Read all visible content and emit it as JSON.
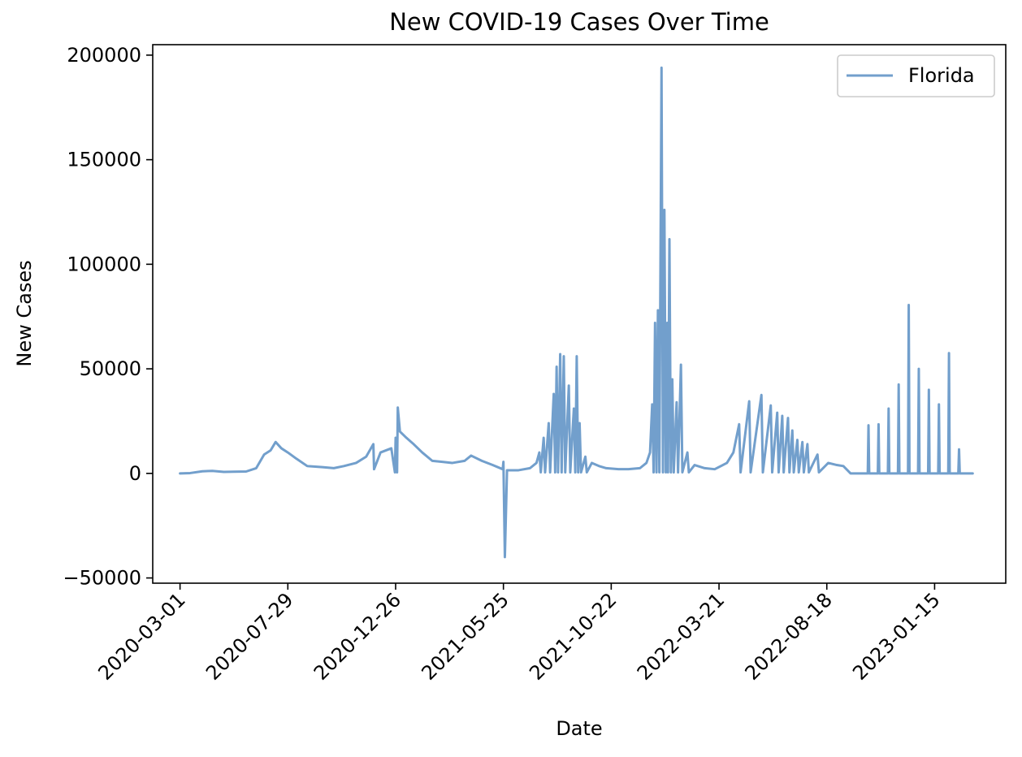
{
  "chart_data": {
    "type": "line",
    "title": "New COVID-19 Cases Over Time",
    "xlabel": "Date",
    "ylabel": "New Cases",
    "xlim": [
      "2020-01-23",
      "2023-04-24"
    ],
    "ylim": [
      -52500,
      205000
    ],
    "x_ticks": [
      "2020-03-01",
      "2020-07-29",
      "2020-12-26",
      "2021-05-25",
      "2021-10-22",
      "2022-03-21",
      "2022-08-18",
      "2023-01-15"
    ],
    "y_ticks": [
      -50000,
      0,
      50000,
      100000,
      150000,
      200000
    ],
    "y_tick_labels": [
      "−50000",
      "0",
      "50000",
      "100000",
      "150000",
      "200000"
    ],
    "grid": false,
    "legend_position": "top-right",
    "colors": {
      "series": "#729fcc"
    },
    "series": [
      {
        "name": "Florida",
        "color": "#729fcc",
        "points": [
          [
            "2020-03-01",
            0
          ],
          [
            "2020-03-15",
            150
          ],
          [
            "2020-04-01",
            1000
          ],
          [
            "2020-04-15",
            1200
          ],
          [
            "2020-05-01",
            700
          ],
          [
            "2020-05-15",
            800
          ],
          [
            "2020-06-01",
            900
          ],
          [
            "2020-06-15",
            2500
          ],
          [
            "2020-06-26",
            9000
          ],
          [
            "2020-07-05",
            11000
          ],
          [
            "2020-07-12",
            15000
          ],
          [
            "2020-07-20",
            12000
          ],
          [
            "2020-07-29",
            10000
          ],
          [
            "2020-08-10",
            7000
          ],
          [
            "2020-08-25",
            3500
          ],
          [
            "2020-09-15",
            3000
          ],
          [
            "2020-10-01",
            2500
          ],
          [
            "2020-10-15",
            3500
          ],
          [
            "2020-11-01",
            5000
          ],
          [
            "2020-11-15",
            8000
          ],
          [
            "2020-11-25",
            14000
          ],
          [
            "2020-11-26",
            2000
          ],
          [
            "2020-12-05",
            10000
          ],
          [
            "2020-12-20",
            12000
          ],
          [
            "2020-12-25",
            500
          ],
          [
            "2020-12-26",
            17000
          ],
          [
            "2020-12-28",
            500
          ],
          [
            "2020-12-29",
            31500
          ],
          [
            "2021-01-01",
            20000
          ],
          [
            "2021-01-10",
            17000
          ],
          [
            "2021-01-20",
            14000
          ],
          [
            "2021-02-01",
            10000
          ],
          [
            "2021-02-15",
            6000
          ],
          [
            "2021-03-01",
            5500
          ],
          [
            "2021-03-15",
            5000
          ],
          [
            "2021-04-01",
            6000
          ],
          [
            "2021-04-10",
            8500
          ],
          [
            "2021-04-25",
            6000
          ],
          [
            "2021-05-10",
            4000
          ],
          [
            "2021-05-24",
            2000
          ],
          [
            "2021-05-25",
            5500
          ],
          [
            "2021-05-27",
            -40000
          ],
          [
            "2021-05-30",
            1500
          ],
          [
            "2021-06-15",
            1500
          ],
          [
            "2021-07-01",
            2500
          ],
          [
            "2021-07-10",
            5000
          ],
          [
            "2021-07-14",
            10000
          ],
          [
            "2021-07-16",
            500
          ],
          [
            "2021-07-20",
            17000
          ],
          [
            "2021-07-22",
            500
          ],
          [
            "2021-07-27",
            24000
          ],
          [
            "2021-07-29",
            500
          ],
          [
            "2021-08-03",
            38000
          ],
          [
            "2021-08-05",
            500
          ],
          [
            "2021-08-07",
            51000
          ],
          [
            "2021-08-09",
            500
          ],
          [
            "2021-08-12",
            57000
          ],
          [
            "2021-08-14",
            500
          ],
          [
            "2021-08-17",
            56000
          ],
          [
            "2021-08-19",
            500
          ],
          [
            "2021-08-24",
            42000
          ],
          [
            "2021-08-26",
            500
          ],
          [
            "2021-08-31",
            31000
          ],
          [
            "2021-09-02",
            500
          ],
          [
            "2021-09-04",
            56000
          ],
          [
            "2021-09-06",
            500
          ],
          [
            "2021-09-08",
            24000
          ],
          [
            "2021-09-10",
            500
          ],
          [
            "2021-09-16",
            8000
          ],
          [
            "2021-09-18",
            500
          ],
          [
            "2021-09-25",
            5000
          ],
          [
            "2021-10-05",
            3500
          ],
          [
            "2021-10-15",
            2500
          ],
          [
            "2021-11-01",
            2000
          ],
          [
            "2021-11-15",
            2000
          ],
          [
            "2021-12-01",
            2500
          ],
          [
            "2021-12-10",
            5000
          ],
          [
            "2021-12-15",
            10000
          ],
          [
            "2021-12-18",
            33000
          ],
          [
            "2021-12-20",
            500
          ],
          [
            "2021-12-22",
            72000
          ],
          [
            "2021-12-24",
            500
          ],
          [
            "2021-12-26",
            78000
          ],
          [
            "2021-12-28",
            500
          ],
          [
            "2021-12-31",
            194000
          ],
          [
            "2022-01-02",
            500
          ],
          [
            "2022-01-04",
            126000
          ],
          [
            "2022-01-06",
            500
          ],
          [
            "2022-01-08",
            72000
          ],
          [
            "2022-01-09",
            500
          ],
          [
            "2022-01-11",
            112000
          ],
          [
            "2022-01-13",
            500
          ],
          [
            "2022-01-15",
            45000
          ],
          [
            "2022-01-17",
            500
          ],
          [
            "2022-01-21",
            34000
          ],
          [
            "2022-01-23",
            500
          ],
          [
            "2022-01-27",
            52000
          ],
          [
            "2022-01-29",
            500
          ],
          [
            "2022-02-05",
            10000
          ],
          [
            "2022-02-07",
            500
          ],
          [
            "2022-02-15",
            4000
          ],
          [
            "2022-03-01",
            2500
          ],
          [
            "2022-03-15",
            2000
          ],
          [
            "2022-04-01",
            5000
          ],
          [
            "2022-04-10",
            10000
          ],
          [
            "2022-04-18",
            23500
          ],
          [
            "2022-04-20",
            500
          ],
          [
            "2022-05-02",
            34500
          ],
          [
            "2022-05-04",
            500
          ],
          [
            "2022-05-19",
            37500
          ],
          [
            "2022-05-21",
            500
          ],
          [
            "2022-06-01",
            32500
          ],
          [
            "2022-06-03",
            500
          ],
          [
            "2022-06-10",
            29000
          ],
          [
            "2022-06-12",
            500
          ],
          [
            "2022-06-17",
            27500
          ],
          [
            "2022-06-19",
            500
          ],
          [
            "2022-06-25",
            26500
          ],
          [
            "2022-06-27",
            500
          ],
          [
            "2022-07-01",
            20500
          ],
          [
            "2022-07-03",
            500
          ],
          [
            "2022-07-08",
            16000
          ],
          [
            "2022-07-10",
            500
          ],
          [
            "2022-07-15",
            15000
          ],
          [
            "2022-07-17",
            500
          ],
          [
            "2022-07-22",
            14000
          ],
          [
            "2022-07-24",
            500
          ],
          [
            "2022-08-05",
            9000
          ],
          [
            "2022-08-07",
            500
          ],
          [
            "2022-08-20",
            5000
          ],
          [
            "2022-09-01",
            4000
          ],
          [
            "2022-09-10",
            3500
          ],
          [
            "2022-09-20",
            0
          ],
          [
            "2022-10-14",
            0
          ],
          [
            "2022-10-15",
            23000
          ],
          [
            "2022-10-16",
            0
          ],
          [
            "2022-10-28",
            0
          ],
          [
            "2022-10-29",
            23500
          ],
          [
            "2022-10-30",
            0
          ],
          [
            "2022-11-11",
            0
          ],
          [
            "2022-11-12",
            31000
          ],
          [
            "2022-11-13",
            0
          ],
          [
            "2022-11-25",
            0
          ],
          [
            "2022-11-26",
            42500
          ],
          [
            "2022-11-27",
            0
          ],
          [
            "2022-12-09",
            0
          ],
          [
            "2022-12-10",
            80500
          ],
          [
            "2022-12-11",
            0
          ],
          [
            "2022-12-23",
            0
          ],
          [
            "2022-12-24",
            50000
          ],
          [
            "2022-12-25",
            0
          ],
          [
            "2023-01-06",
            0
          ],
          [
            "2023-01-07",
            40000
          ],
          [
            "2023-01-08",
            0
          ],
          [
            "2023-01-20",
            0
          ],
          [
            "2023-01-21",
            33000
          ],
          [
            "2023-01-22",
            0
          ],
          [
            "2023-02-03",
            0
          ],
          [
            "2023-02-04",
            57500
          ],
          [
            "2023-02-05",
            0
          ],
          [
            "2023-02-17",
            0
          ],
          [
            "2023-02-18",
            11500
          ],
          [
            "2023-02-19",
            0
          ],
          [
            "2023-03-09",
            0
          ]
        ]
      }
    ]
  }
}
